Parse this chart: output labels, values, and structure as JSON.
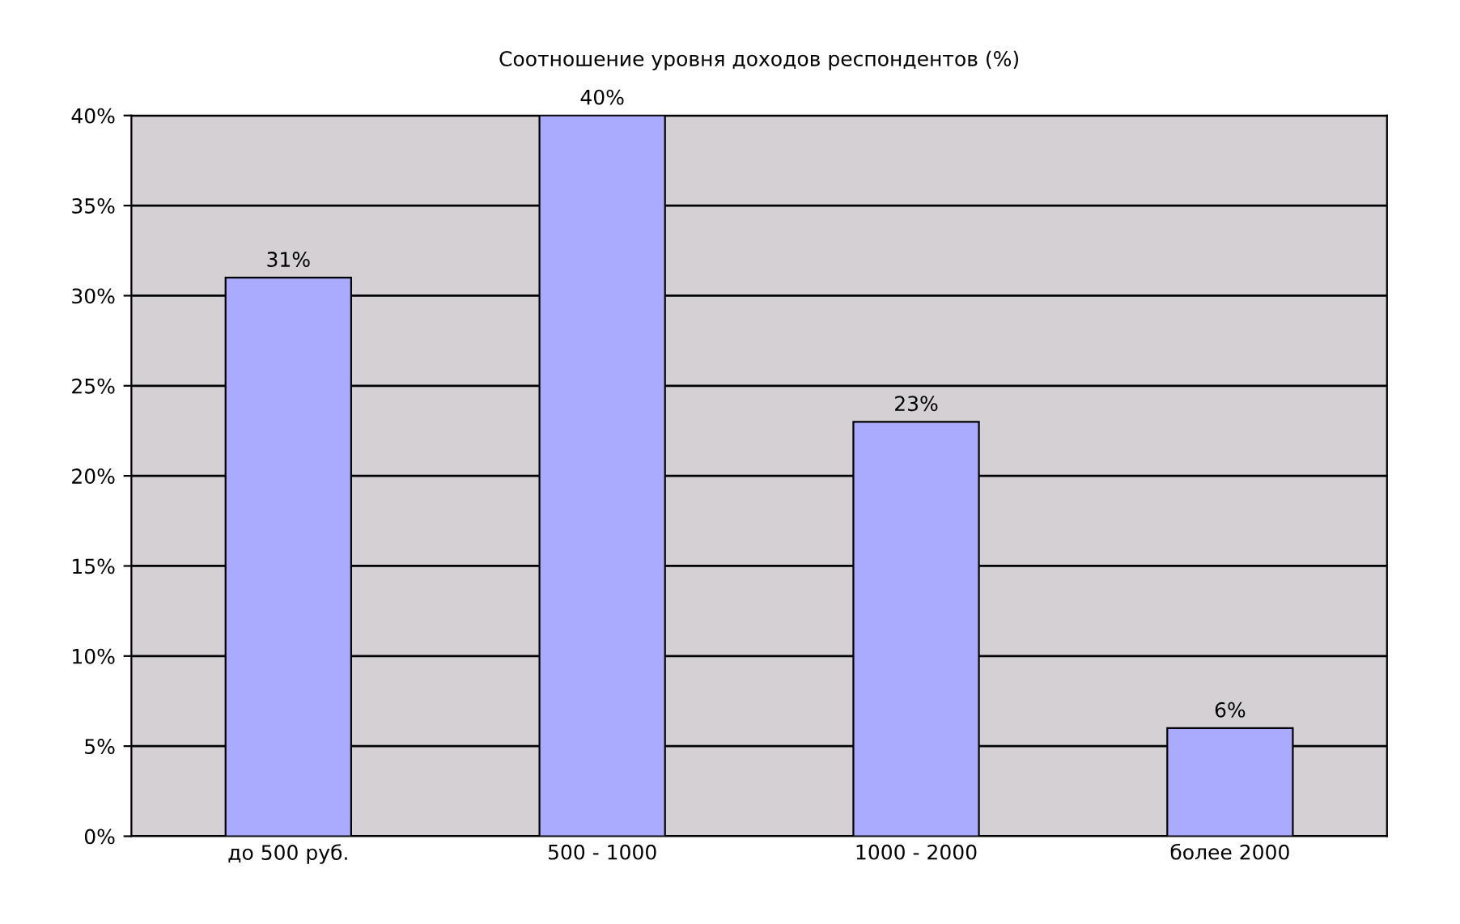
{
  "chart_data": {
    "type": "bar",
    "title": "Соотношение уровня доходов респондентов (%)",
    "categories": [
      "до 500 руб.",
      "500 - 1000",
      "1000 - 2000",
      "более 2000"
    ],
    "values": [
      31,
      40,
      23,
      6
    ],
    "value_labels": [
      "31%",
      "40%",
      "23%",
      "6%"
    ],
    "color": "#aaaaff",
    "ylim": [
      0,
      40
    ],
    "yticks": [
      {
        "value": 0,
        "label": "0%"
      },
      {
        "value": 5,
        "label": "5%"
      },
      {
        "value": 10,
        "label": "10%"
      },
      {
        "value": 15,
        "label": "15%"
      },
      {
        "value": 20,
        "label": "20%"
      },
      {
        "value": 25,
        "label": "25%"
      },
      {
        "value": 30,
        "label": "30%"
      },
      {
        "value": 35,
        "label": "35%"
      },
      {
        "value": 40,
        "label": "40%"
      }
    ],
    "grid": "y",
    "legend": false
  }
}
